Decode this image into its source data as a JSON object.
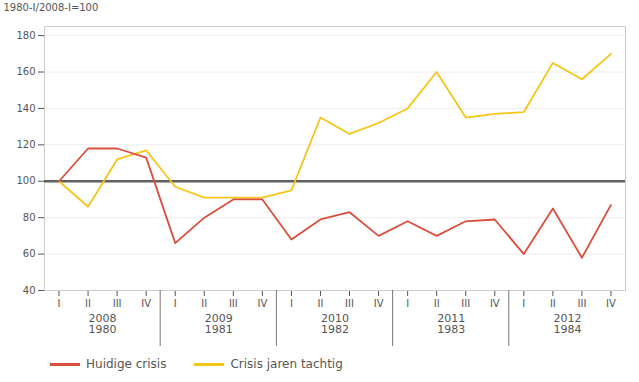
{
  "chart_data": {
    "type": "line",
    "ylabel": "1980-I/2008-I=100",
    "categories": [
      "I",
      "II",
      "III",
      "IV",
      "I",
      "II",
      "III",
      "IV",
      "I",
      "II",
      "III",
      "IV",
      "I",
      "II",
      "III",
      "IV",
      "I",
      "II",
      "III",
      "IV"
    ],
    "category_groups": [
      [
        "2008",
        "1980"
      ],
      [
        "2009",
        "1981"
      ],
      [
        "2010",
        "1982"
      ],
      [
        "2011",
        "1983"
      ],
      [
        "2012",
        "1984"
      ]
    ],
    "series": [
      {
        "name": "Huidige crisis",
        "color": "#d94f3d",
        "values": [
          100,
          118,
          118,
          113,
          66,
          80,
          90,
          90,
          68,
          79,
          83,
          70,
          78,
          70,
          78,
          79,
          60,
          85,
          58,
          87
        ]
      },
      {
        "name": "Crisis jaren tachtig",
        "color": "#f5c518",
        "values": [
          100,
          86,
          112,
          117,
          97,
          91,
          91,
          91,
          95,
          135,
          126,
          132,
          140,
          160,
          135,
          137,
          138,
          165,
          156,
          170
        ]
      }
    ],
    "baseline": {
      "value": 100,
      "color": "#606060"
    },
    "ylim": [
      40,
      185
    ],
    "yticks": [
      40,
      60,
      80,
      100,
      120,
      140,
      160,
      180
    ],
    "grid": true,
    "legend": "bottom"
  }
}
